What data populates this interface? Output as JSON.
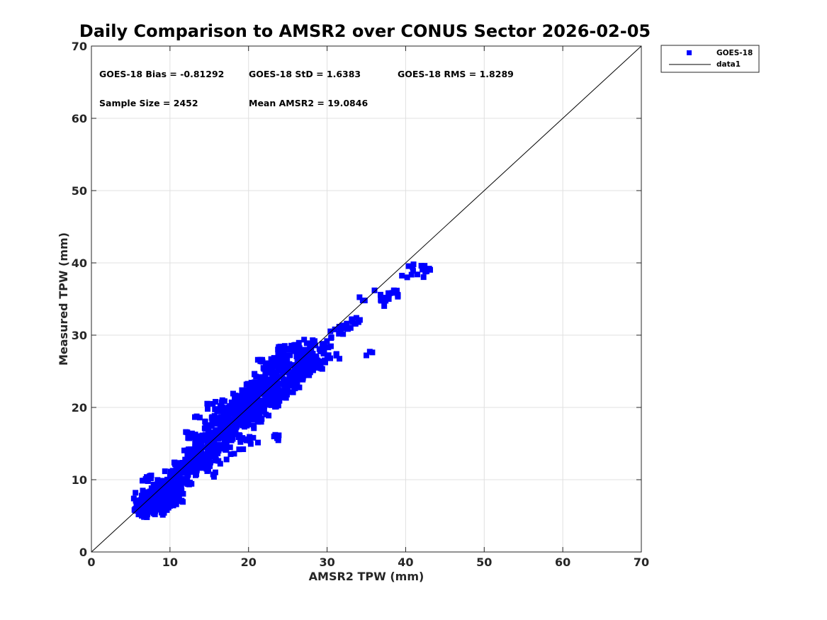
{
  "chart_data": {
    "type": "scatter",
    "title": "Daily Comparison to AMSR2 over CONUS Sector 2026-02-05",
    "xlabel": "AMSR2 TPW (mm)",
    "ylabel": "Measured TPW (mm)",
    "xlim": [
      0,
      70
    ],
    "ylim": [
      0,
      70
    ],
    "xticks": [
      "0",
      "10",
      "20",
      "30",
      "40",
      "50",
      "60",
      "70"
    ],
    "yticks": [
      "0",
      "10",
      "20",
      "30",
      "40",
      "50",
      "60",
      "70"
    ],
    "grid": true,
    "legend_position": "outside-top-right",
    "stats": {
      "bias": "GOES-18 Bias = -0.81292",
      "std": "GOES-18 StD = 1.6383",
      "rms": "GOES-18 RMS = 1.8289",
      "sample_size": "Sample Size = 2452",
      "mean": "Mean AMSR2 = 19.0846"
    },
    "series": [
      {
        "name": "GOES-18",
        "type": "scatter",
        "marker": "square",
        "color": "#0000ff",
        "points": [
          [
            5.4,
            7.4
          ],
          [
            6.0,
            5.2
          ],
          [
            6.2,
            6.0
          ],
          [
            6.5,
            7.2
          ],
          [
            6.8,
            5.6
          ],
          [
            7.0,
            6.4
          ],
          [
            7.2,
            7.8
          ],
          [
            7.5,
            6.8
          ],
          [
            7.8,
            5.8
          ],
          [
            8.0,
            7.0
          ],
          [
            8.3,
            8.2
          ],
          [
            8.5,
            6.2
          ],
          [
            8.8,
            7.5
          ],
          [
            9.0,
            8.6
          ],
          [
            9.2,
            6.8
          ],
          [
            9.5,
            9.2
          ],
          [
            9.8,
            7.6
          ],
          [
            10.0,
            10.4
          ],
          [
            10.2,
            8.4
          ],
          [
            10.5,
            9.0
          ],
          [
            10.8,
            10.8
          ],
          [
            11.0,
            7.6
          ],
          [
            11.2,
            9.4
          ],
          [
            11.5,
            11.6
          ],
          [
            11.8,
            9.8
          ],
          [
            12.0,
            12.4
          ],
          [
            12.2,
            10.2
          ],
          [
            12.5,
            13.6
          ],
          [
            12.8,
            11.2
          ],
          [
            13.0,
            12.0
          ],
          [
            13.2,
            14.2
          ],
          [
            13.5,
            12.6
          ],
          [
            13.8,
            15.4
          ],
          [
            14.0,
            13.0
          ],
          [
            14.2,
            11.8
          ],
          [
            14.5,
            16.2
          ],
          [
            14.8,
            14.0
          ],
          [
            15.0,
            12.4
          ],
          [
            15.2,
            17.4
          ],
          [
            15.5,
            15.0
          ],
          [
            15.8,
            13.4
          ],
          [
            16.0,
            18.2
          ],
          [
            16.2,
            16.4
          ],
          [
            16.5,
            14.6
          ],
          [
            16.8,
            19.2
          ],
          [
            17.0,
            17.2
          ],
          [
            17.2,
            15.2
          ],
          [
            17.5,
            20.0
          ],
          [
            17.8,
            18.0
          ],
          [
            18.0,
            16.4
          ],
          [
            18.2,
            19.4
          ],
          [
            18.5,
            21.2
          ],
          [
            18.8,
            17.6
          ],
          [
            19.0,
            20.2
          ],
          [
            19.2,
            18.6
          ],
          [
            19.5,
            22.0
          ],
          [
            19.8,
            19.6
          ],
          [
            20.0,
            17.8
          ],
          [
            20.2,
            21.4
          ],
          [
            20.5,
            23.0
          ],
          [
            20.8,
            20.2
          ],
          [
            21.0,
            18.8
          ],
          [
            21.2,
            22.4
          ],
          [
            21.5,
            24.2
          ],
          [
            21.8,
            21.0
          ],
          [
            22.0,
            19.6
          ],
          [
            22.2,
            23.2
          ],
          [
            22.5,
            25.4
          ],
          [
            22.8,
            22.0
          ],
          [
            23.0,
            20.8
          ],
          [
            23.2,
            24.4
          ],
          [
            23.5,
            26.2
          ],
          [
            23.8,
            22.8
          ],
          [
            24.0,
            21.6
          ],
          [
            24.2,
            25.2
          ],
          [
            24.5,
            27.0
          ],
          [
            24.8,
            23.8
          ],
          [
            25.0,
            22.4
          ],
          [
            25.2,
            26.0
          ],
          [
            25.5,
            24.6
          ],
          [
            25.8,
            27.8
          ],
          [
            26.0,
            25.0
          ],
          [
            26.2,
            23.4
          ],
          [
            26.5,
            28.2
          ],
          [
            26.8,
            26.2
          ],
          [
            27.0,
            24.4
          ],
          [
            27.2,
            27.4
          ],
          [
            27.5,
            25.6
          ],
          [
            27.8,
            28.6
          ],
          [
            28.0,
            26.6
          ],
          [
            28.5,
            27.0
          ],
          [
            29.0,
            25.8
          ],
          [
            29.5,
            27.8
          ],
          [
            30.0,
            28.4
          ],
          [
            30.5,
            29.6
          ],
          [
            31.0,
            30.8
          ],
          [
            31.5,
            30.2
          ],
          [
            32.0,
            31.2
          ],
          [
            32.5,
            31.6
          ],
          [
            33.0,
            31.0
          ],
          [
            33.5,
            31.6
          ],
          [
            34.0,
            31.8
          ],
          [
            34.8,
            34.8
          ],
          [
            35.0,
            27.2
          ],
          [
            36.8,
            35.6
          ],
          [
            37.2,
            34.8
          ],
          [
            37.5,
            35.2
          ],
          [
            38.0,
            35.8
          ],
          [
            38.5,
            36.2
          ],
          [
            39.0,
            35.6
          ],
          [
            40.2,
            38.0
          ],
          [
            41.0,
            39.8
          ],
          [
            41.5,
            38.4
          ],
          [
            42.0,
            39.6
          ],
          [
            42.5,
            38.8
          ],
          [
            43.0,
            39.2
          ],
          [
            24.5,
            27.8
          ],
          [
            19.5,
            15.6
          ],
          [
            17.2,
            12.8
          ],
          [
            15.6,
            10.4
          ],
          [
            14.0,
            12.2
          ],
          [
            12.8,
            16.4
          ],
          [
            13.8,
            18.6
          ],
          [
            18.8,
            14.2
          ],
          [
            20.6,
            15.8
          ],
          [
            23.4,
            16.2
          ],
          [
            23.8,
            15.8
          ],
          [
            30.4,
            26.8
          ],
          [
            31.2,
            27.4
          ],
          [
            11.2,
            11.8
          ],
          [
            9.6,
            5.8
          ],
          [
            10.8,
            6.6
          ],
          [
            11.0,
            7.8
          ],
          [
            7.2,
            9.8
          ],
          [
            8.4,
            9.2
          ],
          [
            6.4,
            6.4
          ],
          [
            16.4,
            20.2
          ],
          [
            14.8,
            19.8
          ],
          [
            21.5,
            26.4
          ],
          [
            22.4,
            26.0
          ]
        ]
      },
      {
        "name": "data1",
        "type": "line",
        "color": "#000000",
        "points": [
          [
            0,
            0
          ],
          [
            70,
            70
          ]
        ]
      }
    ]
  }
}
